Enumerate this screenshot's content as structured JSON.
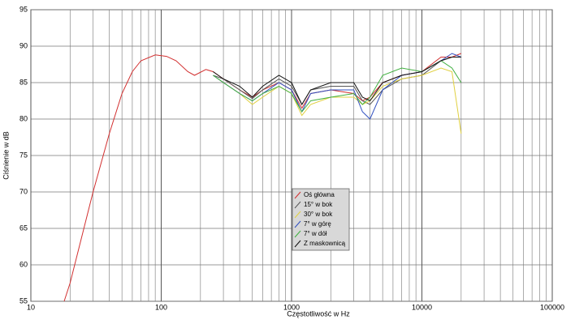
{
  "chart_data": {
    "type": "line",
    "ylabel": "Ciśnienie w dB",
    "xlabel": "Częstotliwość w Hz",
    "xscale": "log",
    "grid": true,
    "legend": "center",
    "xlim": [
      10,
      100000
    ],
    "ylim": [
      55,
      95
    ],
    "xticks": [
      10,
      100,
      1000,
      10000,
      100000
    ],
    "xminorticks": [
      20,
      30,
      40,
      50,
      60,
      70,
      80,
      90,
      200,
      300,
      400,
      500,
      600,
      700,
      800,
      900,
      2000,
      3000,
      4000,
      5000,
      6000,
      7000,
      8000,
      9000,
      20000,
      30000,
      40000,
      50000,
      60000,
      70000,
      80000,
      90000
    ],
    "yticks": [
      55,
      60,
      65,
      70,
      75,
      80,
      85,
      90,
      95
    ],
    "series": [
      {
        "name": "Oś główna",
        "color": "#d23030",
        "x": [
          18,
          20,
          30,
          40,
          50,
          60,
          70,
          90,
          110,
          130,
          160,
          180,
          220,
          250,
          300,
          400,
          500,
          600,
          800,
          1000,
          1200,
          1400,
          2000,
          3000,
          3500,
          4000,
          5000,
          7000,
          10000,
          14000,
          17000,
          20000
        ],
        "values": [
          55,
          57.5,
          70,
          78,
          83.5,
          86.5,
          88,
          88.8,
          88.6,
          88,
          86.5,
          86,
          86.8,
          86.5,
          85.5,
          84,
          83,
          84,
          85,
          84,
          81.5,
          83.5,
          84,
          83.5,
          82.5,
          83,
          85,
          86,
          86.5,
          88.5,
          88.5,
          89
        ]
      },
      {
        "name": "15° w bok",
        "color": "#555555",
        "x": [
          250,
          300,
          400,
          500,
          600,
          800,
          1000,
          1200,
          1400,
          2000,
          3000,
          3500,
          4000,
          5000,
          7000,
          10000,
          14000,
          17000,
          20000
        ],
        "values": [
          86,
          85.5,
          84,
          82.8,
          84,
          85.5,
          84.5,
          82,
          84,
          84.5,
          84.5,
          82.5,
          82,
          84,
          85.5,
          86,
          88,
          88.5,
          88.5
        ]
      },
      {
        "name": "30° w bok",
        "color": "#e0d040",
        "x": [
          250,
          300,
          400,
          500,
          600,
          800,
          1000,
          1200,
          1400,
          2000,
          3000,
          3500,
          4000,
          5000,
          7000,
          10000,
          14000,
          17000,
          20000
        ],
        "values": [
          86,
          85,
          83.5,
          82,
          83,
          84.5,
          83.5,
          80.5,
          82,
          83,
          83,
          82,
          82.5,
          84.5,
          85.5,
          86,
          87,
          86.5,
          78
        ]
      },
      {
        "name": "7° w górę",
        "color": "#3050c0",
        "x": [
          250,
          300,
          400,
          500,
          600,
          800,
          1000,
          1200,
          1400,
          2000,
          3000,
          3500,
          4000,
          5000,
          7000,
          10000,
          14000,
          17000,
          20000
        ],
        "values": [
          86,
          85,
          83.5,
          82.5,
          83.5,
          85,
          84,
          81,
          83.5,
          84,
          84,
          81,
          80,
          84,
          86,
          86.5,
          88,
          89,
          88.5
        ]
      },
      {
        "name": "7° w dół",
        "color": "#40b040",
        "x": [
          250,
          300,
          400,
          500,
          600,
          800,
          1000,
          1200,
          1400,
          2000,
          3000,
          3500,
          4000,
          5000,
          7000,
          10000,
          14000,
          17000,
          20000
        ],
        "values": [
          86,
          85,
          83.5,
          82.5,
          83.5,
          84.5,
          83.5,
          81,
          82.5,
          83,
          83.5,
          82,
          83,
          86,
          87,
          86.5,
          88,
          87,
          85
        ]
      },
      {
        "name": "Z maskownicą",
        "color": "#111111",
        "x": [
          250,
          300,
          400,
          500,
          600,
          800,
          1000,
          1200,
          1400,
          2000,
          3000,
          3500,
          4000,
          5000,
          7000,
          10000,
          14000,
          17000,
          20000
        ],
        "values": [
          86.5,
          85.5,
          84.5,
          83,
          84.5,
          86,
          85,
          82,
          84,
          85,
          85,
          83,
          82.5,
          85,
          86,
          86.5,
          88,
          88.5,
          88.5
        ]
      }
    ]
  }
}
